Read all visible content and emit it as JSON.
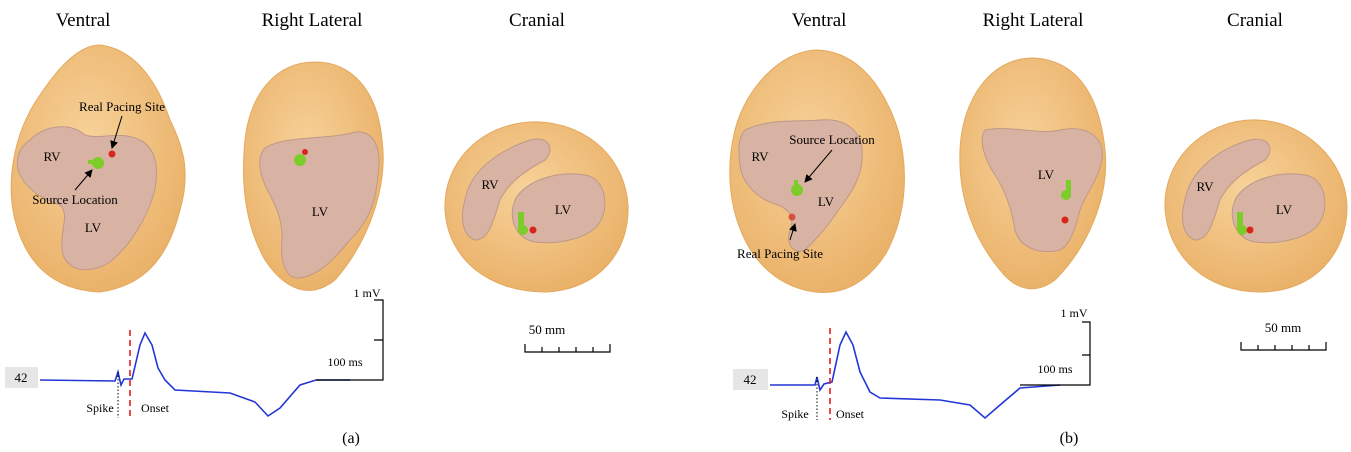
{
  "panels": [
    {
      "caption": "(a)",
      "views": [
        {
          "title": "Ventral",
          "labels": [
            "Real Pacing Site",
            "RV",
            "Source Location",
            "LV"
          ]
        },
        {
          "title": "Right Lateral",
          "labels": [
            "LV"
          ]
        },
        {
          "title": "Cranial",
          "labels": [
            "RV",
            "LV"
          ]
        }
      ],
      "length_scale": "50 mm",
      "ecg": {
        "lead": "42",
        "spike": "Spike",
        "onset": "Onset",
        "amplitude_scale": "1 mV",
        "time_scale": "100 ms"
      }
    },
    {
      "caption": "(b)",
      "views": [
        {
          "title": "Ventral",
          "labels": [
            "Source Location",
            "RV",
            "LV",
            "Real Pacing Site"
          ]
        },
        {
          "title": "Right Lateral",
          "labels": [
            "LV"
          ]
        },
        {
          "title": "Cranial",
          "labels": [
            "RV",
            "LV"
          ]
        }
      ],
      "length_scale": "50 mm",
      "ecg": {
        "lead": "42",
        "spike": "Spike",
        "onset": "Onset",
        "amplitude_scale": "1 mV",
        "time_scale": "100 ms"
      }
    }
  ]
}
